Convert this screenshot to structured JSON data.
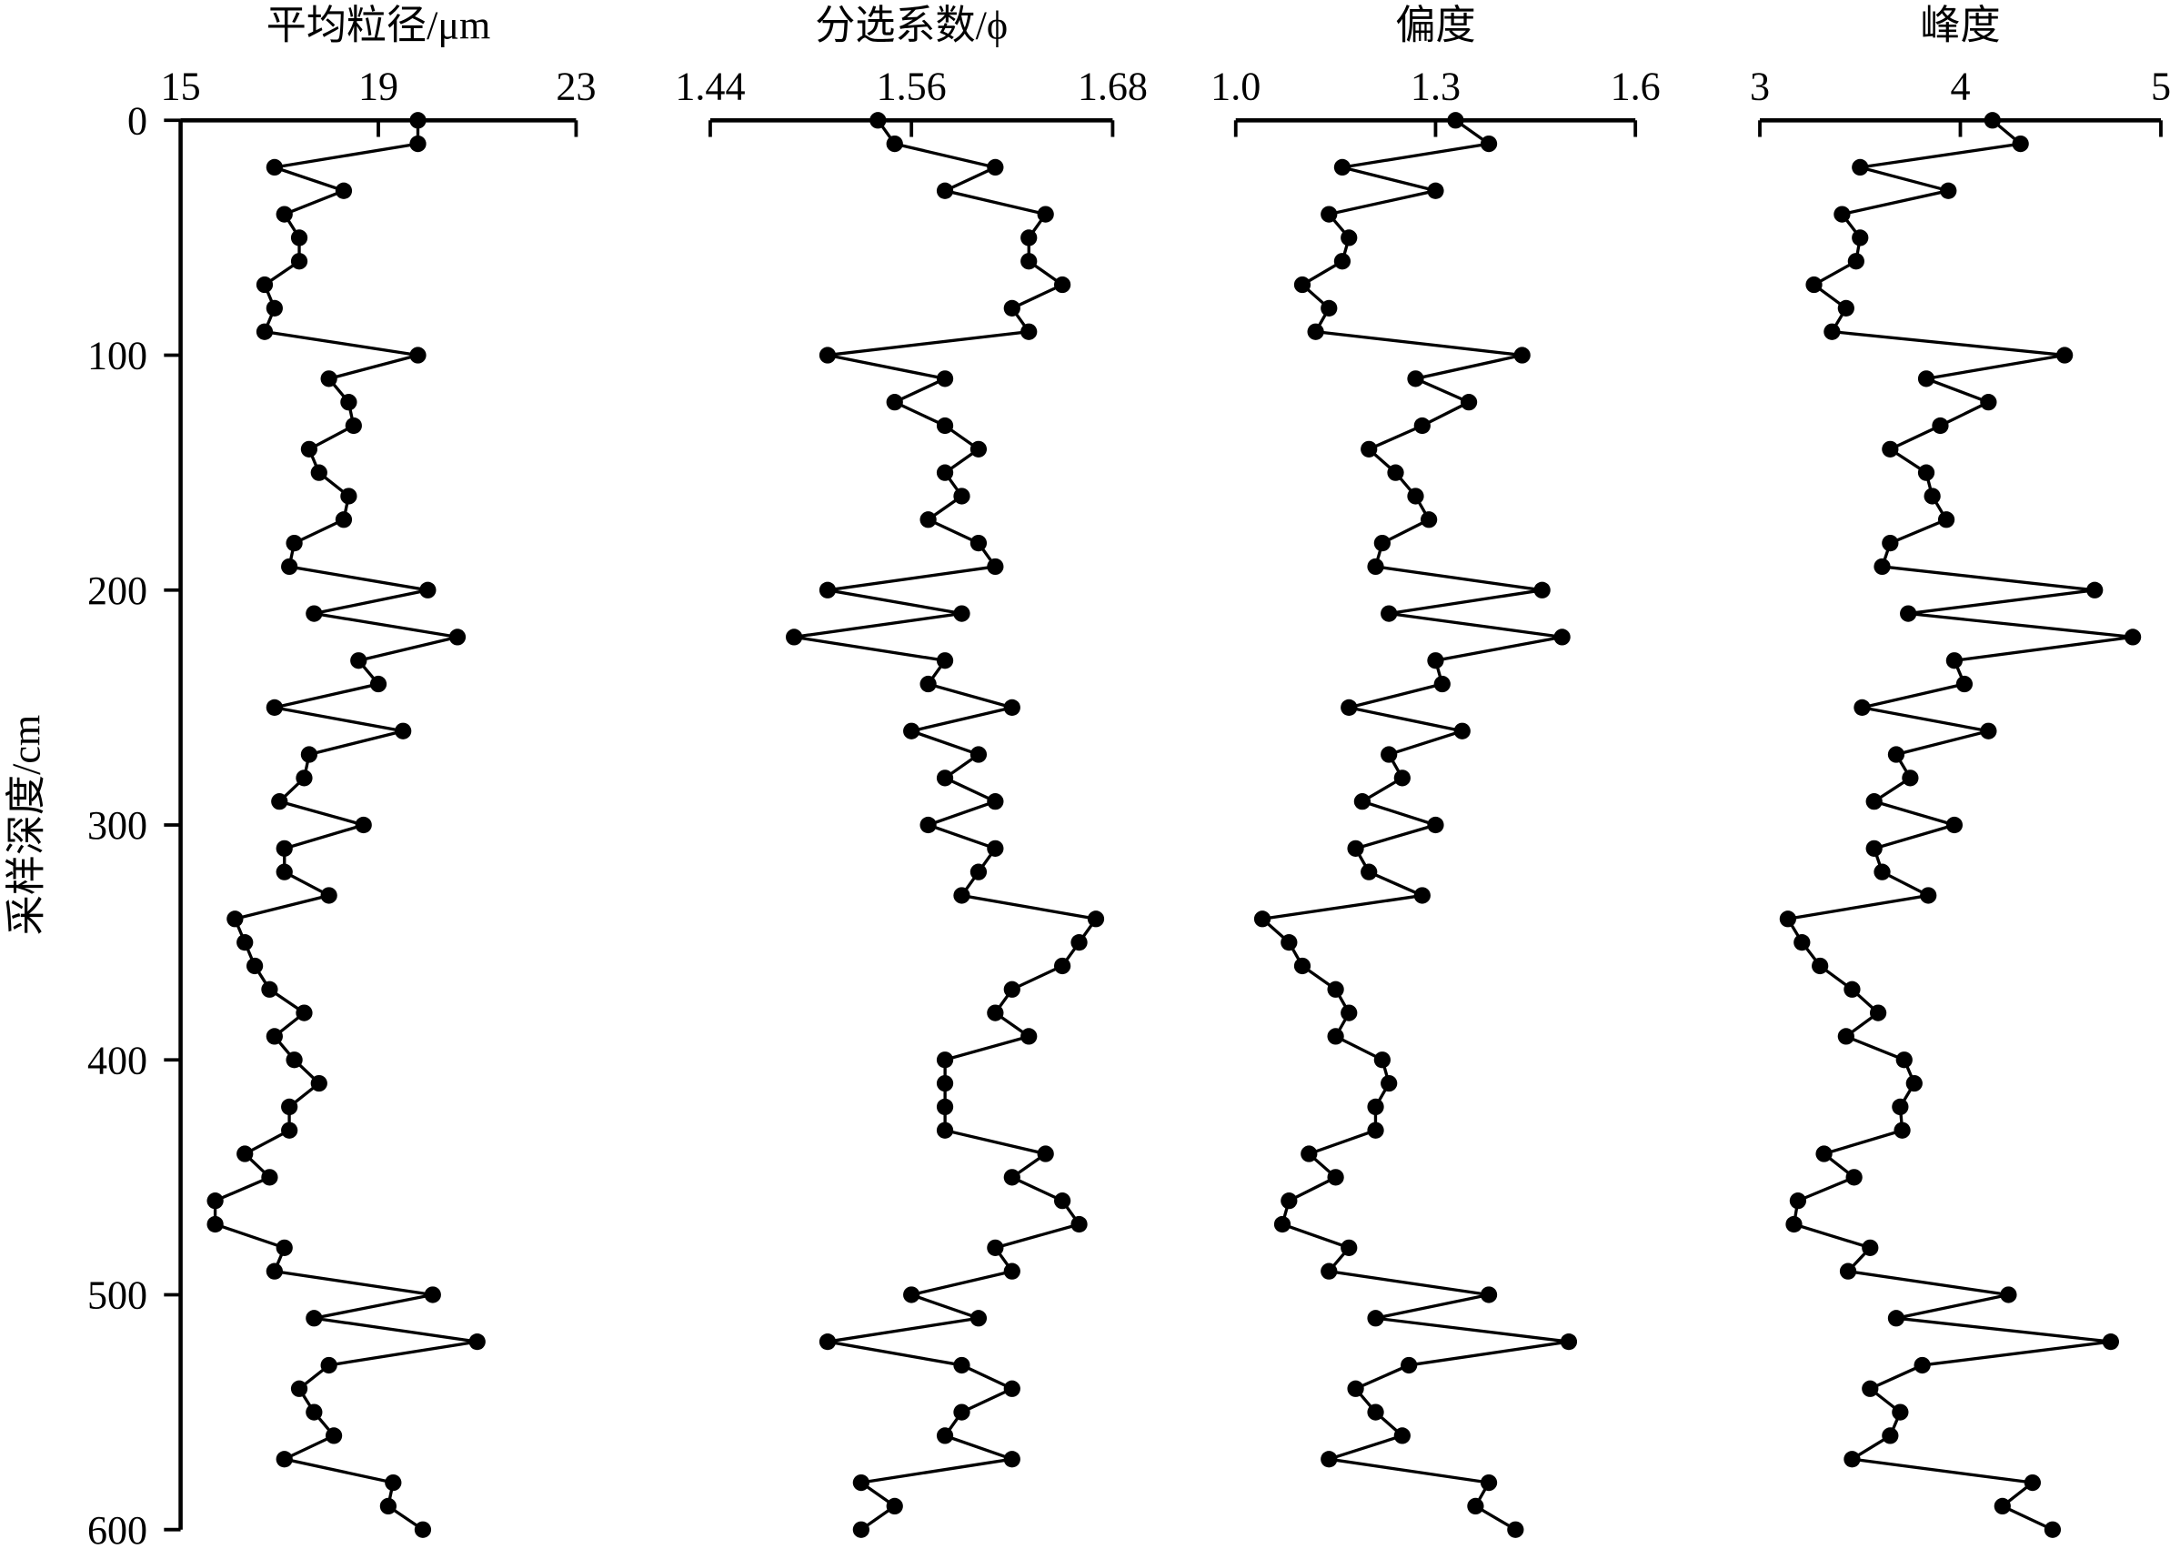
{
  "chart_data": [
    {
      "type": "line",
      "title": "平均粒径/μm",
      "ylabel": "采样深度/cm",
      "color": "#000000",
      "xlim": [
        15,
        23
      ],
      "xticks": [
        15,
        19,
        23
      ],
      "ylim": [
        0,
        600
      ],
      "yticks": [
        0,
        100,
        200,
        300,
        400,
        500,
        600
      ],
      "y": [
        0,
        10,
        20,
        30,
        40,
        50,
        60,
        70,
        80,
        90,
        100,
        110,
        120,
        130,
        140,
        150,
        160,
        170,
        180,
        190,
        200,
        210,
        220,
        230,
        240,
        250,
        260,
        270,
        280,
        290,
        300,
        310,
        320,
        330,
        340,
        350,
        360,
        370,
        380,
        390,
        400,
        410,
        420,
        430,
        440,
        450,
        460,
        470,
        480,
        490,
        500,
        510,
        520,
        530,
        540,
        550,
        560,
        570,
        580,
        590,
        600
      ],
      "series": [
        {
          "values": [
            19.8,
            19.8,
            16.9,
            18.3,
            17.1,
            17.4,
            17.4,
            16.7,
            16.9,
            16.7,
            19.8,
            18.0,
            18.4,
            18.5,
            17.6,
            17.8,
            18.4,
            18.3,
            17.3,
            17.2,
            20.0,
            17.7,
            20.6,
            18.6,
            19.0,
            16.9,
            19.5,
            17.6,
            17.5,
            17.0,
            18.7,
            17.1,
            17.1,
            18.0,
            16.1,
            16.3,
            16.5,
            16.8,
            17.5,
            16.9,
            17.3,
            17.8,
            17.2,
            17.2,
            16.3,
            16.8,
            15.7,
            15.7,
            17.1,
            16.9,
            20.1,
            17.7,
            21.0,
            18.0,
            17.4,
            17.7,
            18.1,
            17.1,
            19.3,
            19.2,
            19.9
          ]
        }
      ]
    },
    {
      "type": "line",
      "title": "分选系数/ϕ",
      "color": "#000000",
      "xlim": [
        1.44,
        1.68
      ],
      "xticks": [
        1.44,
        1.56,
        1.68
      ],
      "ylim": [
        0,
        600
      ],
      "y": [
        0,
        10,
        20,
        30,
        40,
        50,
        60,
        70,
        80,
        90,
        100,
        110,
        120,
        130,
        140,
        150,
        160,
        170,
        180,
        190,
        200,
        210,
        220,
        230,
        240,
        250,
        260,
        270,
        280,
        290,
        300,
        310,
        320,
        330,
        340,
        350,
        360,
        370,
        380,
        390,
        400,
        410,
        420,
        430,
        440,
        450,
        460,
        470,
        480,
        490,
        500,
        510,
        520,
        530,
        540,
        550,
        560,
        570,
        580,
        590,
        600
      ],
      "series": [
        {
          "values": [
            1.54,
            1.55,
            1.61,
            1.58,
            1.64,
            1.63,
            1.63,
            1.65,
            1.62,
            1.63,
            1.51,
            1.58,
            1.55,
            1.58,
            1.6,
            1.58,
            1.59,
            1.57,
            1.6,
            1.61,
            1.51,
            1.59,
            1.49,
            1.58,
            1.57,
            1.62,
            1.56,
            1.6,
            1.58,
            1.61,
            1.57,
            1.61,
            1.6,
            1.59,
            1.67,
            1.66,
            1.65,
            1.62,
            1.61,
            1.63,
            1.58,
            1.58,
            1.58,
            1.58,
            1.64,
            1.62,
            1.65,
            1.66,
            1.61,
            1.62,
            1.56,
            1.6,
            1.51,
            1.59,
            1.62,
            1.59,
            1.58,
            1.62,
            1.53,
            1.55,
            1.53
          ]
        }
      ]
    },
    {
      "type": "line",
      "title": "偏度",
      "color": "#000000",
      "xlim": [
        1.0,
        1.6
      ],
      "xticks": [
        {
          "value": 1.0,
          "label": "1.0"
        },
        1.3,
        1.6
      ],
      "ylim": [
        0,
        600
      ],
      "y": [
        0,
        10,
        20,
        30,
        40,
        50,
        60,
        70,
        80,
        90,
        100,
        110,
        120,
        130,
        140,
        150,
        160,
        170,
        180,
        190,
        200,
        210,
        220,
        230,
        240,
        250,
        260,
        270,
        280,
        290,
        300,
        310,
        320,
        330,
        340,
        350,
        360,
        370,
        380,
        390,
        400,
        410,
        420,
        430,
        440,
        450,
        460,
        470,
        480,
        490,
        500,
        510,
        520,
        530,
        540,
        550,
        560,
        570,
        580,
        590,
        600
      ],
      "series": [
        {
          "values": [
            1.33,
            1.38,
            1.16,
            1.3,
            1.14,
            1.17,
            1.16,
            1.1,
            1.14,
            1.12,
            1.43,
            1.27,
            1.35,
            1.28,
            1.2,
            1.24,
            1.27,
            1.29,
            1.22,
            1.21,
            1.46,
            1.23,
            1.49,
            1.3,
            1.31,
            1.17,
            1.34,
            1.23,
            1.25,
            1.19,
            1.3,
            1.18,
            1.2,
            1.28,
            1.04,
            1.08,
            1.1,
            1.15,
            1.17,
            1.15,
            1.22,
            1.23,
            1.21,
            1.21,
            1.11,
            1.15,
            1.08,
            1.07,
            1.17,
            1.14,
            1.38,
            1.21,
            1.5,
            1.26,
            1.18,
            1.21,
            1.25,
            1.14,
            1.38,
            1.36,
            1.42
          ]
        }
      ]
    },
    {
      "type": "line",
      "title": "峰度",
      "color": "#000000",
      "xlim": [
        3,
        5
      ],
      "xticks": [
        3,
        4,
        5
      ],
      "ylim": [
        0,
        600
      ],
      "y": [
        0,
        10,
        20,
        30,
        40,
        50,
        60,
        70,
        80,
        90,
        100,
        110,
        120,
        130,
        140,
        150,
        160,
        170,
        180,
        190,
        200,
        210,
        220,
        230,
        240,
        250,
        260,
        270,
        280,
        290,
        300,
        310,
        320,
        330,
        340,
        350,
        360,
        370,
        380,
        390,
        400,
        410,
        420,
        430,
        440,
        450,
        460,
        470,
        480,
        490,
        500,
        510,
        520,
        530,
        540,
        550,
        560,
        570,
        580,
        590,
        600
      ],
      "series": [
        {
          "values": [
            4.16,
            4.3,
            3.5,
            3.94,
            3.41,
            3.5,
            3.48,
            3.27,
            3.43,
            3.36,
            4.52,
            3.83,
            4.14,
            3.9,
            3.65,
            3.83,
            3.86,
            3.93,
            3.65,
            3.61,
            4.67,
            3.74,
            4.86,
            3.97,
            4.02,
            3.51,
            4.14,
            3.68,
            3.75,
            3.57,
            3.97,
            3.57,
            3.61,
            3.84,
            3.14,
            3.21,
            3.3,
            3.46,
            3.59,
            3.43,
            3.72,
            3.77,
            3.7,
            3.71,
            3.32,
            3.47,
            3.19,
            3.17,
            3.55,
            3.44,
            4.24,
            3.68,
            4.75,
            3.81,
            3.55,
            3.7,
            3.65,
            3.46,
            4.36,
            4.21,
            4.46
          ]
        }
      ]
    }
  ]
}
